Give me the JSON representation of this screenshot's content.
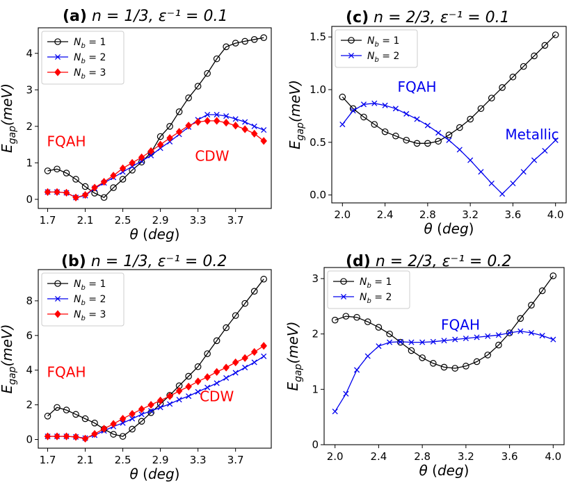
{
  "chart_data": [
    {
      "id": "a",
      "type": "line",
      "panel_label": "(a)",
      "title_math": "n = 1/3, ε⁻¹ = 0.1",
      "xlabel": "θ (deg)",
      "ylabel_main": "E",
      "ylabel_sub": "gap",
      "ylabel_rest": "(meV)",
      "xlim": [
        1.6,
        4.08
      ],
      "ylim": [
        -0.25,
        4.7
      ],
      "xticks": [
        1.7,
        2.1,
        2.5,
        2.9,
        3.3,
        3.7
      ],
      "xtick_labels": [
        "1.7",
        "2.1",
        "2.5",
        "2.9",
        "3.3",
        "3.7"
      ],
      "yticks": [
        0,
        1,
        2,
        3,
        4
      ],
      "ytick_labels": [
        "0",
        "1",
        "2",
        "3",
        "4"
      ],
      "legend_position": "top-left",
      "series": [
        {
          "name": "N_b = 1",
          "legend_main": "N",
          "legend_sub": "b",
          "legend_rest": " = 1",
          "color": "#000000",
          "marker": "circle",
          "x": [
            1.7,
            1.8,
            1.9,
            2.0,
            2.1,
            2.2,
            2.3,
            2.4,
            2.5,
            2.6,
            2.7,
            2.8,
            2.9,
            3.0,
            3.1,
            3.2,
            3.3,
            3.4,
            3.5,
            3.6,
            3.7,
            3.8,
            3.9,
            4.0
          ],
          "y": [
            0.78,
            0.83,
            0.72,
            0.55,
            0.35,
            0.17,
            0.05,
            0.32,
            0.55,
            0.8,
            1.02,
            1.28,
            1.72,
            2.0,
            2.4,
            2.78,
            3.1,
            3.45,
            3.85,
            4.18,
            4.28,
            4.33,
            4.38,
            4.43
          ]
        },
        {
          "name": "N_b = 2",
          "legend_main": "N",
          "legend_sub": "b",
          "legend_rest": " = 2",
          "color": "#0000ee",
          "marker": "x",
          "x": [
            1.7,
            1.8,
            1.9,
            2.0,
            2.1,
            2.2,
            2.3,
            2.4,
            2.5,
            2.6,
            2.7,
            2.8,
            2.9,
            3.0,
            3.1,
            3.2,
            3.3,
            3.4,
            3.5,
            3.6,
            3.7,
            3.8,
            3.9,
            4.0
          ],
          "y": [
            0.2,
            0.2,
            0.18,
            0.05,
            0.1,
            0.3,
            0.45,
            0.6,
            0.75,
            0.9,
            1.05,
            1.2,
            1.4,
            1.58,
            1.78,
            1.98,
            2.18,
            2.32,
            2.32,
            2.28,
            2.2,
            2.12,
            2.0,
            1.9
          ]
        },
        {
          "name": "N_b = 3",
          "legend_main": "N",
          "legend_sub": "b",
          "legend_rest": " = 3",
          "color": "#ff0000",
          "marker": "diamond",
          "x": [
            1.7,
            1.8,
            1.9,
            2.0,
            2.1,
            2.2,
            2.3,
            2.4,
            2.5,
            2.6,
            2.7,
            2.8,
            2.9,
            3.0,
            3.1,
            3.2,
            3.3,
            3.4,
            3.5,
            3.6,
            3.7,
            3.8,
            3.9,
            4.0
          ],
          "y": [
            0.2,
            0.2,
            0.18,
            0.05,
            0.12,
            0.32,
            0.48,
            0.65,
            0.85,
            1.0,
            1.15,
            1.32,
            1.5,
            1.68,
            1.85,
            2.02,
            2.12,
            2.15,
            2.15,
            2.1,
            2.02,
            1.92,
            1.8,
            1.6
          ]
        }
      ],
      "annotations": [
        {
          "text": "FQAH",
          "x": 1.9,
          "y": 1.45,
          "color": "#ff0000"
        },
        {
          "text": "CDW",
          "x": 3.45,
          "y": 1.05,
          "color": "#ff0000"
        }
      ]
    },
    {
      "id": "b",
      "type": "line",
      "panel_label": "(b)",
      "title_math": "n = 1/3, ε⁻¹ = 0.2",
      "xlabel": "θ (deg)",
      "ylabel_main": "E",
      "ylabel_sub": "gap",
      "ylabel_rest": "(meV)",
      "xlim": [
        1.6,
        4.08
      ],
      "ylim": [
        -0.5,
        9.8
      ],
      "xticks": [
        1.7,
        2.1,
        2.5,
        2.9,
        3.3,
        3.7
      ],
      "xtick_labels": [
        "1.7",
        "2.1",
        "2.5",
        "2.9",
        "3.3",
        "3.7"
      ],
      "yticks": [
        0,
        2,
        4,
        6,
        8
      ],
      "ytick_labels": [
        "0",
        "2",
        "4",
        "6",
        "8"
      ],
      "legend_position": "top-left",
      "series": [
        {
          "name": "N_b = 1",
          "legend_main": "N",
          "legend_sub": "b",
          "legend_rest": " = 1",
          "color": "#000000",
          "marker": "circle",
          "x": [
            1.7,
            1.8,
            1.9,
            2.0,
            2.1,
            2.2,
            2.3,
            2.4,
            2.5,
            2.6,
            2.7,
            2.8,
            2.9,
            3.0,
            3.1,
            3.2,
            3.3,
            3.4,
            3.5,
            3.6,
            3.7,
            3.8,
            3.9,
            4.0
          ],
          "y": [
            1.35,
            1.85,
            1.7,
            1.45,
            1.2,
            0.95,
            0.6,
            0.3,
            0.18,
            0.6,
            1.05,
            1.55,
            2.05,
            2.55,
            3.1,
            3.65,
            4.2,
            4.95,
            5.7,
            6.45,
            7.15,
            7.85,
            8.55,
            9.25
          ]
        },
        {
          "name": "N_b = 2",
          "legend_main": "N",
          "legend_sub": "b",
          "legend_rest": " = 2",
          "color": "#0000ee",
          "marker": "x",
          "x": [
            1.7,
            1.8,
            1.9,
            2.0,
            2.1,
            2.2,
            2.3,
            2.4,
            2.5,
            2.6,
            2.7,
            2.8,
            2.9,
            3.0,
            3.1,
            3.2,
            3.3,
            3.4,
            3.5,
            3.6,
            3.7,
            3.8,
            3.9,
            4.0
          ],
          "y": [
            0.18,
            0.18,
            0.18,
            0.15,
            0.08,
            0.25,
            0.5,
            0.75,
            0.95,
            1.2,
            1.45,
            1.65,
            1.85,
            2.05,
            2.3,
            2.5,
            2.75,
            3.0,
            3.25,
            3.55,
            3.85,
            4.15,
            4.45,
            4.8
          ]
        },
        {
          "name": "N_b = 3",
          "legend_main": "N",
          "legend_sub": "b",
          "legend_rest": " = 3",
          "color": "#ff0000",
          "marker": "diamond",
          "x": [
            1.7,
            1.8,
            1.9,
            2.0,
            2.1,
            2.2,
            2.3,
            2.4,
            2.5,
            2.6,
            2.7,
            2.8,
            2.9,
            3.0,
            3.1,
            3.2,
            3.3,
            3.4,
            3.5,
            3.6,
            3.7,
            3.8,
            3.9,
            4.0
          ],
          "y": [
            0.18,
            0.18,
            0.18,
            0.15,
            0.05,
            0.32,
            0.62,
            0.9,
            1.2,
            1.48,
            1.75,
            2.0,
            2.25,
            2.5,
            2.8,
            3.05,
            3.35,
            3.6,
            3.9,
            4.15,
            4.45,
            4.7,
            5.05,
            5.4
          ]
        }
      ],
      "annotations": [
        {
          "text": "FQAH",
          "x": 1.9,
          "y": 3.6,
          "color": "#ff0000"
        },
        {
          "text": "CDW",
          "x": 3.5,
          "y": 2.2,
          "color": "#ff0000"
        }
      ]
    },
    {
      "id": "c",
      "type": "line",
      "panel_label": "(c)",
      "title_math": "n = 2/3, ε⁻¹ = 0.1",
      "xlabel": "θ (deg)",
      "ylabel_main": "E",
      "ylabel_sub": "gap",
      "ylabel_rest": "(meV)",
      "xlim": [
        1.9,
        4.1
      ],
      "ylim": [
        -0.075,
        1.6
      ],
      "xticks": [
        2.0,
        2.4,
        2.8,
        3.2,
        3.6,
        4.0
      ],
      "xtick_labels": [
        "2.0",
        "2.4",
        "2.8",
        "3.2",
        "3.6",
        "4.0"
      ],
      "yticks": [
        0.0,
        0.5,
        1.0,
        1.5
      ],
      "ytick_labels": [
        "0.0",
        "0.5",
        "1.0",
        "1.5"
      ],
      "legend_position": "top-left",
      "series": [
        {
          "name": "N_b = 1",
          "legend_main": "N",
          "legend_sub": "b",
          "legend_rest": " = 1",
          "color": "#000000",
          "marker": "circle",
          "x": [
            2.0,
            2.1,
            2.2,
            2.3,
            2.4,
            2.5,
            2.6,
            2.7,
            2.8,
            2.9,
            3.0,
            3.1,
            3.2,
            3.3,
            3.4,
            3.5,
            3.6,
            3.7,
            3.8,
            3.9,
            4.0
          ],
          "y": [
            0.93,
            0.82,
            0.74,
            0.67,
            0.6,
            0.56,
            0.52,
            0.49,
            0.49,
            0.51,
            0.57,
            0.64,
            0.72,
            0.82,
            0.92,
            1.02,
            1.12,
            1.22,
            1.32,
            1.42,
            1.52
          ]
        },
        {
          "name": "N_b = 2",
          "legend_main": "N",
          "legend_sub": "b",
          "legend_rest": " = 2",
          "color": "#0000ee",
          "marker": "x",
          "x": [
            2.0,
            2.1,
            2.2,
            2.3,
            2.4,
            2.5,
            2.6,
            2.7,
            2.8,
            2.9,
            3.0,
            3.1,
            3.2,
            3.3,
            3.4,
            3.5,
            3.6,
            3.7,
            3.8,
            3.9,
            4.0
          ],
          "y": [
            0.67,
            0.8,
            0.86,
            0.87,
            0.85,
            0.82,
            0.77,
            0.72,
            0.66,
            0.59,
            0.52,
            0.43,
            0.33,
            0.22,
            0.11,
            0.01,
            0.11,
            0.22,
            0.33,
            0.42,
            0.52
          ]
        }
      ],
      "annotations": [
        {
          "text": "FQAH",
          "x": 2.7,
          "y": 0.98,
          "color": "#0000ee"
        },
        {
          "text": "Metallic",
          "x": 3.78,
          "y": 0.53,
          "color": "#0000ee"
        }
      ]
    },
    {
      "id": "d",
      "type": "line",
      "panel_label": "(d)",
      "title_math": "n = 2/3, ε⁻¹ = 0.2",
      "xlabel": "θ (deg)",
      "ylabel_main": "E",
      "ylabel_sub": "gap",
      "ylabel_rest": "(meV)",
      "xlim": [
        1.9,
        4.1
      ],
      "ylim": [
        0,
        3.2
      ],
      "xticks": [
        2.0,
        2.4,
        2.8,
        3.2,
        3.6,
        4.0
      ],
      "xtick_labels": [
        "2.0",
        "2.4",
        "2.8",
        "3.2",
        "3.6",
        "4.0"
      ],
      "yticks": [
        0,
        1,
        2,
        3
      ],
      "ytick_labels": [
        "0",
        "1",
        "2",
        "3"
      ],
      "legend_position": "top-left",
      "series": [
        {
          "name": "N_b = 1",
          "legend_main": "N",
          "legend_sub": "b",
          "legend_rest": " = 1",
          "color": "#000000",
          "marker": "circle",
          "x": [
            2.0,
            2.1,
            2.2,
            2.3,
            2.4,
            2.5,
            2.6,
            2.7,
            2.8,
            2.9,
            3.0,
            3.1,
            3.2,
            3.3,
            3.4,
            3.5,
            3.6,
            3.7,
            3.8,
            3.9,
            4.0
          ],
          "y": [
            2.25,
            2.32,
            2.3,
            2.22,
            2.12,
            2.0,
            1.85,
            1.7,
            1.57,
            1.47,
            1.4,
            1.38,
            1.42,
            1.5,
            1.62,
            1.8,
            2.02,
            2.28,
            2.52,
            2.78,
            3.05
          ]
        },
        {
          "name": "N_b = 2",
          "legend_main": "N",
          "legend_sub": "b",
          "legend_rest": " = 2",
          "color": "#0000ee",
          "marker": "x",
          "x": [
            2.0,
            2.1,
            2.2,
            2.3,
            2.4,
            2.5,
            2.6,
            2.7,
            2.8,
            2.9,
            3.0,
            3.1,
            3.2,
            3.3,
            3.4,
            3.5,
            3.6,
            3.7,
            3.8,
            3.9,
            4.0
          ],
          "y": [
            0.6,
            0.92,
            1.35,
            1.6,
            1.78,
            1.85,
            1.86,
            1.85,
            1.85,
            1.86,
            1.88,
            1.9,
            1.92,
            1.94,
            1.96,
            1.98,
            2.02,
            2.05,
            2.02,
            1.97,
            1.9
          ]
        }
      ],
      "annotations": [
        {
          "text": "FQAH",
          "x": 3.15,
          "y": 2.08,
          "color": "#0000ee"
        }
      ]
    }
  ]
}
